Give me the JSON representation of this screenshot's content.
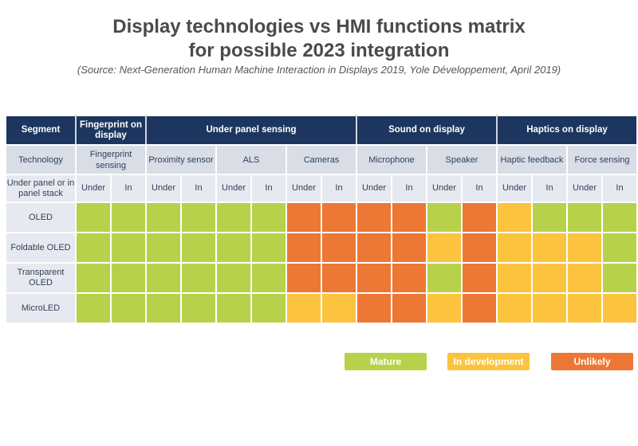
{
  "title_line1": "Display technologies vs HMI functions matrix",
  "title_line2": "for possible 2023 integration",
  "source": "(Source: Next-Generation Human Machine Interaction in Displays 2019, Yole Développement, April 2019)",
  "header": {
    "segment_label": "Segment",
    "technology_label": "Technology",
    "position_label": "Under panel or in panel stack",
    "segments": [
      {
        "name": "Fingerprint on display",
        "span": 2
      },
      {
        "name": "Under panel sensing",
        "span": 6
      },
      {
        "name": "Sound on display",
        "span": 4
      },
      {
        "name": "Haptics on display",
        "span": 4
      }
    ],
    "technologies": [
      "Fingerprint sensing",
      "Proximity sensor",
      "ALS",
      "Cameras",
      "Microphone",
      "Speaker",
      "Haptic feedback",
      "Force sensing"
    ],
    "positions": [
      "Under",
      "In"
    ]
  },
  "colors": {
    "mature": "#b7d24a",
    "in_development": "#fcc33e",
    "unlikely": "#ed7735"
  },
  "legend": {
    "mature": "Mature",
    "in_development": "In development",
    "unlikely": "Unlikely"
  },
  "chart_data": {
    "type": "table",
    "rows": [
      "OLED",
      "Foldable OLED",
      "Transparent OLED",
      "MicroLED"
    ],
    "columns": [
      "Fingerprint sensing Under",
      "Fingerprint sensing In",
      "Proximity sensor Under",
      "Proximity sensor In",
      "ALS Under",
      "ALS In",
      "Cameras Under",
      "Cameras In",
      "Microphone Under",
      "Microphone In",
      "Speaker Under",
      "Speaker In",
      "Haptic feedback Under",
      "Haptic feedback In",
      "Force sensing Under",
      "Force sensing In"
    ],
    "values": [
      [
        "M",
        "M",
        "M",
        "M",
        "M",
        "M",
        "U",
        "U",
        "U",
        "U",
        "M",
        "U",
        "D",
        "M",
        "M",
        "M"
      ],
      [
        "M",
        "M",
        "M",
        "M",
        "M",
        "M",
        "U",
        "U",
        "U",
        "U",
        "D",
        "U",
        "D",
        "D",
        "D",
        "M"
      ],
      [
        "M",
        "M",
        "M",
        "M",
        "M",
        "M",
        "U",
        "U",
        "U",
        "U",
        "M",
        "U",
        "D",
        "D",
        "D",
        "M"
      ],
      [
        "M",
        "M",
        "M",
        "M",
        "M",
        "M",
        "D",
        "D",
        "U",
        "U",
        "D",
        "U",
        "D",
        "D",
        "D",
        "D"
      ]
    ],
    "value_key": {
      "M": "Mature",
      "D": "In development",
      "U": "Unlikely"
    }
  }
}
